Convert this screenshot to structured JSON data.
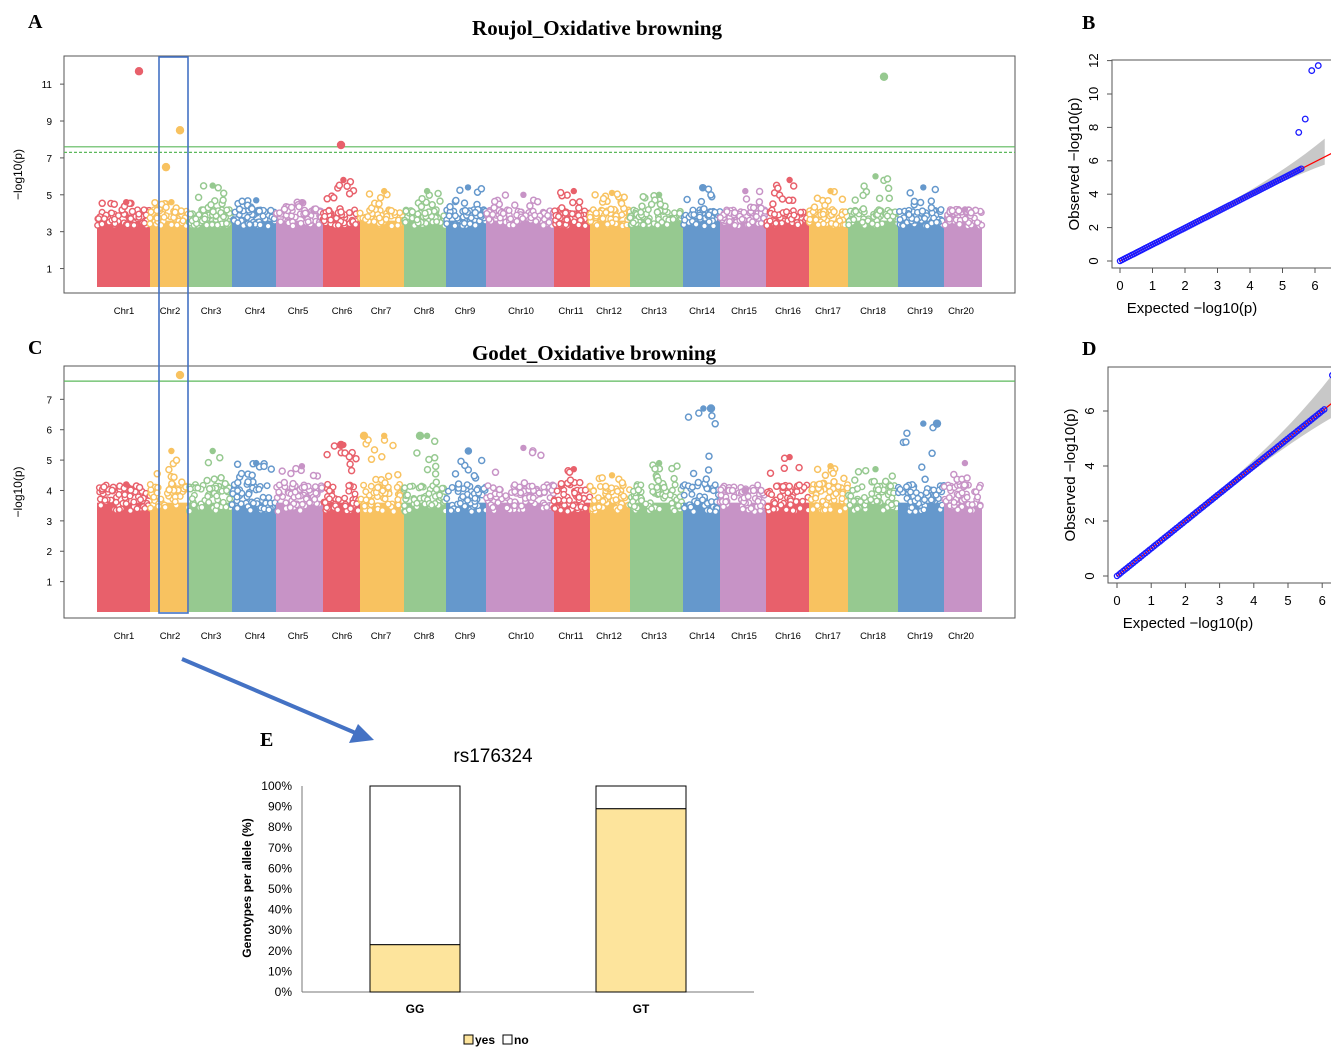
{
  "colors": {
    "chr_palette": [
      "#e8606b",
      "#f8c260",
      "#96c990",
      "#6598cc",
      "#c793c6"
    ],
    "threshold": "#5cb85c",
    "highlight_box": "#4472c4",
    "qq_points": "#1a1aff",
    "qq_line": "#ff0000",
    "bar_yes": "#fde49c",
    "bar_no": "#ffffff",
    "arrow": "#4472c4"
  },
  "panels": {
    "a": {
      "letter": "A"
    },
    "b": {
      "letter": "B"
    },
    "c": {
      "letter": "C"
    },
    "d": {
      "letter": "D"
    },
    "e": {
      "letter": "E"
    }
  },
  "chart_data": [
    {
      "id": "A",
      "type": "scatter",
      "title": "Roujol_Oxidative browning",
      "ylabel": "−log10(p)",
      "ylim": [
        0,
        12.2
      ],
      "yticks": [
        1,
        3,
        5,
        7,
        9,
        11
      ],
      "categories": [
        "Chr1",
        "Chr2",
        "Chr3",
        "Chr4",
        "Chr5",
        "Chr6",
        "Chr7",
        "Chr8",
        "Chr9",
        "Chr10",
        "Chr11",
        "Chr12",
        "Chr13",
        "Chr14",
        "Chr15",
        "Chr16",
        "Chr17",
        "Chr18",
        "Chr19",
        "Chr20"
      ],
      "thresholds": [
        7.6,
        7.3
      ],
      "top_hits": [
        {
          "chr": "Chr1",
          "value": 11.7
        },
        {
          "chr": "Chr2",
          "value": 8.5
        },
        {
          "chr": "Chr2",
          "value": 6.5
        },
        {
          "chr": "Chr6",
          "value": 7.7
        },
        {
          "chr": "Chr18",
          "value": 11.4
        }
      ],
      "chr_tops": [
        4.6,
        4.6,
        5.5,
        4.7,
        4.6,
        5.8,
        5.2,
        5.2,
        5.4,
        5.0,
        5.2,
        5.1,
        5.0,
        5.4,
        5.2,
        5.8,
        5.2,
        6.0,
        5.4,
        4.2
      ]
    },
    {
      "id": "B",
      "type": "scatter",
      "xlabel": "Expected −log10(p)",
      "ylabel": "Observed −log10(p)",
      "xlim": [
        0,
        6.3
      ],
      "ylim": [
        0,
        12
      ],
      "xticks": [
        0,
        1,
        2,
        3,
        4,
        5,
        6
      ],
      "yticks": [
        0,
        2,
        4,
        6,
        8,
        10,
        12
      ],
      "outliers": [
        [
          5.5,
          7.7
        ],
        [
          5.7,
          8.5
        ],
        [
          5.9,
          11.4
        ],
        [
          6.1,
          11.7
        ]
      ]
    },
    {
      "id": "C",
      "type": "scatter",
      "title": "Godet_Oxidative browning",
      "ylabel": "−log10(p)",
      "ylim": [
        0,
        7.9
      ],
      "yticks": [
        1,
        2,
        3,
        4,
        5,
        6,
        7
      ],
      "categories": [
        "Chr1",
        "Chr2",
        "Chr3",
        "Chr4",
        "Chr5",
        "Chr6",
        "Chr7",
        "Chr8",
        "Chr9",
        "Chr10",
        "Chr11",
        "Chr12",
        "Chr13",
        "Chr14",
        "Chr15",
        "Chr16",
        "Chr17",
        "Chr18",
        "Chr19",
        "Chr20"
      ],
      "thresholds": [
        7.6
      ],
      "top_hits": [
        {
          "chr": "Chr2",
          "value": 7.8
        },
        {
          "chr": "Chr14",
          "value": 6.7
        },
        {
          "chr": "Chr19",
          "value": 6.2
        },
        {
          "chr": "Chr7",
          "value": 5.8
        },
        {
          "chr": "Chr8",
          "value": 5.8
        },
        {
          "chr": "Chr6",
          "value": 5.5
        }
      ],
      "chr_tops": [
        4.2,
        5.3,
        5.3,
        4.9,
        4.8,
        5.5,
        5.8,
        5.8,
        5.3,
        5.4,
        4.7,
        4.5,
        4.9,
        6.7,
        4.0,
        5.1,
        4.8,
        4.7,
        6.2,
        4.9
      ]
    },
    {
      "id": "D",
      "type": "scatter",
      "xlabel": "Expected −log10(p)",
      "ylabel": "Observed −log10(p)",
      "xlim": [
        0,
        6.3
      ],
      "ylim": [
        0,
        7.3
      ],
      "xticks": [
        0,
        1,
        2,
        3,
        4,
        5,
        6
      ],
      "yticks": [
        0,
        2,
        4,
        6
      ],
      "outliers": [
        [
          6.3,
          7.3
        ]
      ]
    },
    {
      "id": "E",
      "type": "bar",
      "stacked": true,
      "title": "rs176324",
      "ylabel": "Genotypes per allele (%)",
      "categories": [
        "GG",
        "GT"
      ],
      "ylim": [
        0,
        100
      ],
      "yticks": [
        "0%",
        "10%",
        "20%",
        "30%",
        "40%",
        "50%",
        "60%",
        "70%",
        "80%",
        "90%",
        "100%"
      ],
      "series": [
        {
          "name": "yes",
          "values": [
            23,
            89
          ]
        },
        {
          "name": "no",
          "values": [
            77,
            11
          ]
        }
      ],
      "legend_position": "bottom"
    }
  ]
}
